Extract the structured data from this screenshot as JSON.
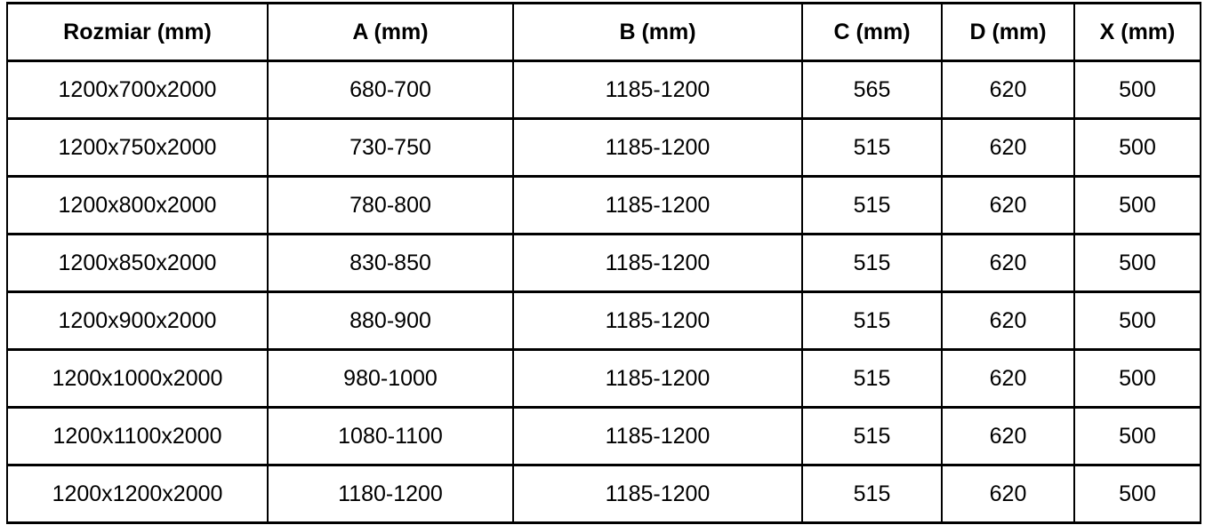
{
  "colors": {
    "background": "#ffffff",
    "border": "#000000",
    "text": "#000000"
  },
  "table": {
    "headers": [
      "Rozmiar (mm)",
      "A (mm)",
      "B (mm)",
      "C (mm)",
      "D (mm)",
      "X (mm)"
    ],
    "rows": [
      [
        "1200x700x2000",
        "680-700",
        "1185-1200",
        "565",
        "620",
        "500"
      ],
      [
        "1200x750x2000",
        "730-750",
        "1185-1200",
        "515",
        "620",
        "500"
      ],
      [
        "1200x800x2000",
        "780-800",
        "1185-1200",
        "515",
        "620",
        "500"
      ],
      [
        "1200x850x2000",
        "830-850",
        "1185-1200",
        "515",
        "620",
        "500"
      ],
      [
        "1200x900x2000",
        "880-900",
        "1185-1200",
        "515",
        "620",
        "500"
      ],
      [
        "1200x1000x2000",
        "980-1000",
        "1185-1200",
        "515",
        "620",
        "500"
      ],
      [
        "1200x1100x2000",
        "1080-1100",
        "1185-1200",
        "515",
        "620",
        "500"
      ],
      [
        "1200x1200x2000",
        "1180-1200",
        "1185-1200",
        "515",
        "620",
        "500"
      ]
    ]
  }
}
